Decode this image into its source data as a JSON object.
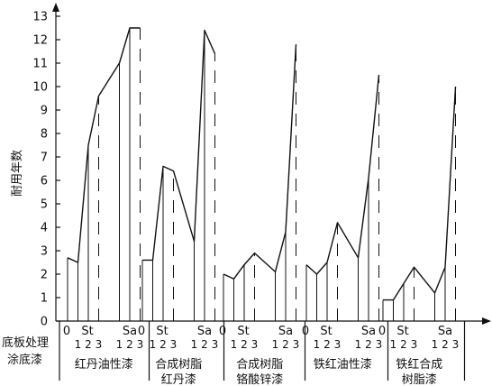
{
  "chart_data": {
    "type": "line",
    "ylabel": "耐用年数",
    "ylim": [
      0,
      13
    ],
    "yticks": [
      0,
      1,
      2,
      3,
      4,
      5,
      6,
      7,
      8,
      9,
      10,
      11,
      12,
      13
    ],
    "row_labels": [
      "底板处理",
      "涂底漆"
    ],
    "surface_treatments": [
      "0",
      "St 1",
      "St 2",
      "St 3",
      "Sa 1",
      "Sa 2",
      "Sa 3"
    ],
    "tick_labels": {
      "zero": "0",
      "st": "St",
      "sa": "Sa",
      "grade1": "1",
      "grade2": "2",
      "grade3": "3"
    },
    "series": [
      {
        "name": "红丹油性漆",
        "name_lines": [
          "红丹油性漆"
        ],
        "values": [
          2.7,
          2.5,
          7.5,
          9.6,
          11.0,
          12.5,
          12.5
        ]
      },
      {
        "name": "合成树脂红丹漆",
        "name_lines": [
          "合成树脂",
          "红丹漆"
        ],
        "values": [
          2.6,
          2.6,
          6.6,
          6.4,
          3.4,
          12.4,
          11.4
        ]
      },
      {
        "name": "合成树脂铬酸锌漆",
        "name_lines": [
          "合成树脂",
          "铬酸锌漆"
        ],
        "values": [
          2.0,
          1.8,
          2.4,
          2.9,
          2.1,
          3.8,
          11.8
        ]
      },
      {
        "name": "铁红油性漆",
        "name_lines": [
          "铁红油性漆"
        ],
        "values": [
          2.4,
          2.0,
          2.5,
          4.2,
          2.7,
          6.1,
          10.5
        ]
      },
      {
        "name": "铁红合成树脂漆",
        "name_lines": [
          "铁红合成",
          "树脂漆"
        ],
        "values": [
          0.9,
          0.9,
          1.6,
          2.3,
          1.2,
          2.3,
          10.0
        ]
      }
    ]
  }
}
